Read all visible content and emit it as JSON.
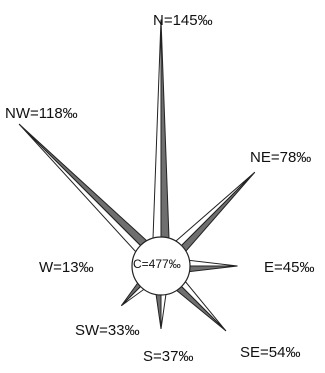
{
  "chart_data": {
    "type": "wind-rose",
    "unit": "‰",
    "directions": [
      {
        "name": "N",
        "angle_deg": 0,
        "value": 145,
        "label": "N=145‰"
      },
      {
        "name": "NE",
        "angle_deg": 45,
        "value": 78,
        "label": "NE=78‰"
      },
      {
        "name": "E",
        "angle_deg": 90,
        "value": 45,
        "label": "E=45‰"
      },
      {
        "name": "SE",
        "angle_deg": 135,
        "value": 54,
        "label": "SE=54‰"
      },
      {
        "name": "S",
        "angle_deg": 180,
        "value": 37,
        "label": "S=37‰"
      },
      {
        "name": "SW",
        "angle_deg": 225,
        "value": 33,
        "label": "SW=33‰"
      },
      {
        "name": "W",
        "angle_deg": 270,
        "value": 13,
        "label": "W=13‰"
      },
      {
        "name": "NW",
        "angle_deg": 315,
        "value": 118,
        "label": "NW=118‰"
      }
    ],
    "calm": {
      "name": "C",
      "value": 477,
      "label": "C=477‰"
    },
    "colors": {
      "light_half": "#ffffff",
      "dark_half": "#6f6f6f",
      "outline": "#222222"
    }
  }
}
